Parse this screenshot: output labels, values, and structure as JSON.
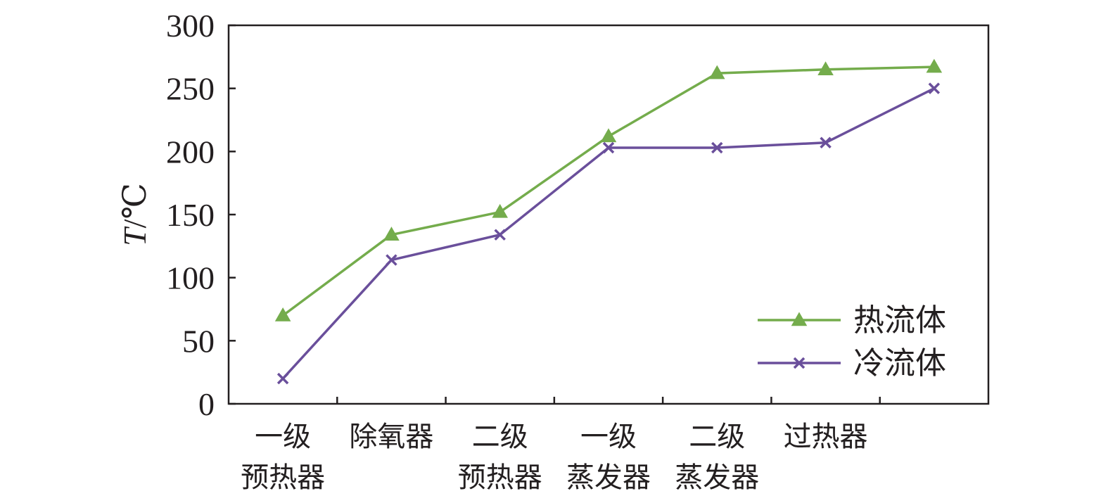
{
  "chart_data": {
    "type": "line",
    "ylabel_var": "T",
    "ylabel_unit": "/℃",
    "xlabel": "",
    "ylim": [
      0,
      300
    ],
    "yticks": [
      "0",
      "50",
      "100",
      "150",
      "200",
      "250",
      "300"
    ],
    "categories": [
      {
        "line1": "一级",
        "line2": "预热器"
      },
      {
        "line1": "除氧器",
        "line2": ""
      },
      {
        "line1": "二级",
        "line2": "预热器"
      },
      {
        "line1": "一级",
        "line2": "蒸发器"
      },
      {
        "line1": "二级",
        "line2": "蒸发器"
      },
      {
        "line1": "过热器",
        "line2": ""
      }
    ],
    "x": [
      0.5,
      1.5,
      2.5,
      3.5,
      4.5,
      5.5,
      6.5
    ],
    "series": [
      {
        "name": "热流体",
        "marker": "triangle",
        "color": "#74ac4c",
        "values": [
          70,
          134,
          152,
          212,
          262,
          265,
          267
        ]
      },
      {
        "name": "冷流体",
        "marker": "x",
        "color": "#6a4f9b",
        "values": [
          20,
          114,
          134,
          203,
          203,
          207,
          250
        ]
      }
    ],
    "legend_position": "bottom-right",
    "grid": false
  }
}
